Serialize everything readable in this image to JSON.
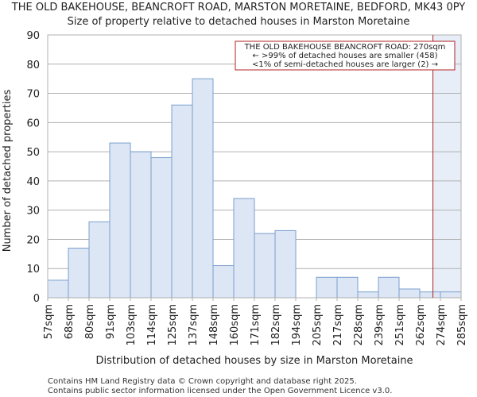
{
  "title": "THE OLD BAKEHOUSE, BEANCROFT ROAD, MARSTON MORETAINE, BEDFORD, MK43 0PY",
  "subtitle": "Size of property relative to detached houses in Marston Moretaine",
  "footer": {
    "line1": "Contains HM Land Registry data © Crown copyright and database right 2025.",
    "line2": "Contains public sector information licensed under the Open Government Licence v3.0."
  },
  "chart_data": {
    "type": "bar",
    "xlabel": "Distribution of detached houses by size in Marston Moretaine",
    "ylabel": "Number of detached properties",
    "ylim": [
      0,
      90
    ],
    "yticks": [
      0,
      10,
      20,
      30,
      40,
      50,
      60,
      70,
      80,
      90
    ],
    "grid": true,
    "bin_edges": [
      "57sqm",
      "68sqm",
      "80sqm",
      "91sqm",
      "103sqm",
      "114sqm",
      "125sqm",
      "137sqm",
      "148sqm",
      "160sqm",
      "171sqm",
      "182sqm",
      "194sqm",
      "205sqm",
      "217sqm",
      "228sqm",
      "239sqm",
      "251sqm",
      "262sqm",
      "274sqm",
      "285sqm"
    ],
    "values": [
      6,
      17,
      26,
      53,
      50,
      48,
      66,
      75,
      11,
      34,
      22,
      23,
      0,
      7,
      7,
      2,
      7,
      3,
      2,
      2
    ],
    "marker": {
      "value": 270,
      "unit": "sqm",
      "color": "#b22222",
      "highlight_color": "#e8eef8"
    },
    "annotation": {
      "lines": [
        "THE OLD BAKEHOUSE BEANCROFT ROAD: 270sqm",
        "← >99% of detached houses are smaller (458)",
        "<1% of semi-detached houses are larger (2) →"
      ],
      "border_color": "#b22222"
    }
  }
}
